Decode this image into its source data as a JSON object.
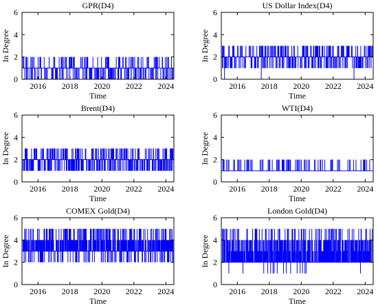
{
  "chart_data": [
    {
      "type": "line",
      "title": "GPR(D4)",
      "xlabel": "Time",
      "ylabel": "In Degree",
      "xlim": [
        2015.0,
        2024.5
      ],
      "ylim": [
        0,
        6
      ],
      "xticks": [
        "2016",
        "2018",
        "2020",
        "2022",
        "2024"
      ],
      "yticks": [
        "0",
        "2",
        "4",
        "6"
      ],
      "series": [
        {
          "baseline": 1,
          "values": [
            0,
            1,
            2
          ],
          "low_value": 0,
          "low_fraction": 0.3,
          "high_value": 2,
          "high_fraction": 0.22,
          "dense_low": true
        }
      ],
      "color": "#0000ff"
    },
    {
      "type": "line",
      "title": "US Dollar Index(D4)",
      "xlabel": "Time",
      "ylabel": "In Degree",
      "xlim": [
        2015.0,
        2024.5
      ],
      "ylim": [
        0,
        6
      ],
      "xticks": [
        "2016",
        "2018",
        "2020",
        "2022",
        "2024"
      ],
      "yticks": [
        "0",
        "2",
        "4",
        "6"
      ],
      "series": [
        {
          "baseline": 2,
          "values": [
            0,
            1,
            2,
            3
          ],
          "low_value": 1,
          "low_fraction": 0.35,
          "high_value": 3,
          "high_fraction": 0.3,
          "rare_zero": [
            2015.2,
            2017.5,
            2023.3
          ]
        }
      ],
      "color": "#0000ff"
    },
    {
      "type": "line",
      "title": "Brent(D4)",
      "xlabel": "Time",
      "ylabel": "In Degree",
      "xlim": [
        2015.0,
        2024.5
      ],
      "ylim": [
        0,
        6
      ],
      "xticks": [
        "2016",
        "2018",
        "2020",
        "2022",
        "2024"
      ],
      "yticks": [
        "0",
        "2",
        "4",
        "6"
      ],
      "series": [
        {
          "baseline": 2,
          "values": [
            1,
            2,
            3
          ],
          "low_value": 1,
          "low_fraction": 0.4,
          "high_value": 3,
          "high_fraction": 0.3
        }
      ],
      "color": "#0000ff"
    },
    {
      "type": "line",
      "title": "WTI(D4)",
      "xlabel": "Time",
      "ylabel": "In Degree",
      "xlim": [
        2015.0,
        2024.5
      ],
      "ylim": [
        0,
        6
      ],
      "xticks": [
        "2016",
        "2018",
        "2020",
        "2022",
        "2024"
      ],
      "yticks": [
        "0",
        "2",
        "4",
        "6"
      ],
      "series": [
        {
          "baseline": 1,
          "values": [
            1,
            2
          ],
          "high_value": 2,
          "high_fraction": 0.2
        }
      ],
      "color": "#0000ff"
    },
    {
      "type": "line",
      "title": "COMEX Gold(D4)",
      "xlabel": "Time",
      "ylabel": "In Degree",
      "xlim": [
        2015.0,
        2024.5
      ],
      "ylim": [
        0,
        6
      ],
      "xticks": [
        "2016",
        "2018",
        "2020",
        "2022",
        "2024"
      ],
      "yticks": [
        "0",
        "2",
        "4",
        "6"
      ],
      "series": [
        {
          "baseline": 3,
          "values": [
            2,
            3,
            4,
            5
          ],
          "low_value": 2,
          "low_fraction": 0.3,
          "high_value": 5,
          "high_fraction": 0.3,
          "mid_value": 4,
          "mid_fraction": 0.6
        }
      ],
      "color": "#0000ff"
    },
    {
      "type": "line",
      "title": "London Gold(D4)",
      "xlabel": "Time",
      "ylabel": "In Degree",
      "xlim": [
        2015.0,
        2024.5
      ],
      "ylim": [
        0,
        6
      ],
      "xticks": [
        "2016",
        "2018",
        "2020",
        "2022",
        "2024"
      ],
      "yticks": [
        "0",
        "2",
        "4",
        "6"
      ],
      "series": [
        {
          "baseline": 2,
          "values": [
            1,
            2,
            3,
            4,
            5
          ],
          "low_value": 1,
          "low_fraction": 0.03,
          "high_value": 5,
          "high_fraction": 0.2,
          "mid_value": 4,
          "mid_fraction": 0.5,
          "mid2_value": 3,
          "mid2_fraction": 0.5
        }
      ],
      "color": "#0000ff"
    }
  ]
}
